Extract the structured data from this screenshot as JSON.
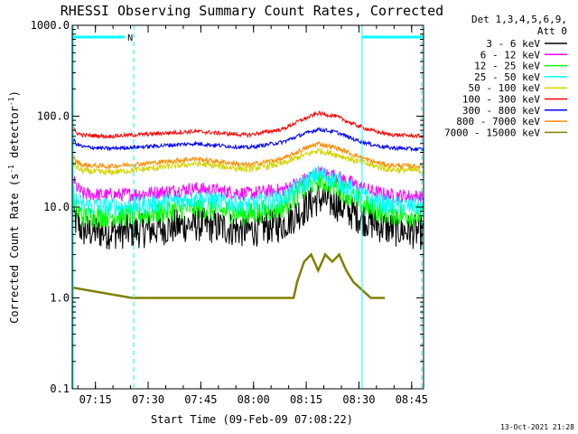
{
  "chart_data": {
    "type": "line",
    "title": "RHESSI Observing Summary Count Rates, Corrected",
    "xlabel": "Start Time (09-Feb-09 07:08:22)",
    "ylabel_main": "Corrected Count Rate (s",
    "ylabel_sup1": "-1",
    "ylabel_mid": " detector",
    "ylabel_sup2": "-1",
    "ylabel_end": ")",
    "y_scale": "log",
    "ylim": [
      0.1,
      1000.0
    ],
    "xlim_minutes": [
      0,
      100
    ],
    "x_ticks": [
      {
        "label": "07:15",
        "minute": 6.6
      },
      {
        "label": "07:30",
        "minute": 21.6
      },
      {
        "label": "07:45",
        "minute": 36.6
      },
      {
        "label": "08:00",
        "minute": 51.6
      },
      {
        "label": "08:15",
        "minute": 66.6
      },
      {
        "label": "08:30",
        "minute": 81.6
      },
      {
        "label": "08:45",
        "minute": 96.6
      }
    ],
    "y_ticks": [
      {
        "label": "1000.0",
        "value": 1000
      },
      {
        "label": "100.0",
        "value": 100
      },
      {
        "label": "10.0",
        "value": 10
      },
      {
        "label": "1.0",
        "value": 1
      },
      {
        "label": "0.1",
        "value": 0.1
      }
    ],
    "legend_title_1": "Det 1,3,4,5,6,9,",
    "legend_title_2": "Att 0",
    "legend_placement": "right",
    "series": [
      {
        "name": "3 - 6 keV",
        "color": "#000000",
        "minutes": [
          0,
          1,
          3,
          10,
          20,
          35,
          50,
          60,
          65,
          70,
          75,
          80,
          85,
          90,
          100
        ],
        "values": [
          9,
          7,
          5.5,
          5.3,
          5.5,
          6.5,
          5.5,
          6.5,
          9,
          12.5,
          11,
          8.5,
          6.8,
          5.8,
          5.2
        ],
        "noise": 0.45
      },
      {
        "name": "6 - 12 keV",
        "color": "#ff00ff",
        "minutes": [
          0,
          1,
          3,
          10,
          20,
          35,
          50,
          60,
          65,
          70,
          75,
          80,
          85,
          90,
          100
        ],
        "values": [
          22,
          17,
          14,
          13.5,
          14,
          16,
          14,
          15.5,
          19,
          24,
          22,
          18,
          15,
          13.5,
          13
        ],
        "noise": 0.18
      },
      {
        "name": "12 - 25 keV",
        "color": "#00ff00",
        "minutes": [
          0,
          1,
          3,
          10,
          20,
          35,
          50,
          60,
          65,
          70,
          75,
          80,
          85,
          90,
          100
        ],
        "values": [
          12,
          9.5,
          8,
          8,
          8.3,
          10,
          8.3,
          10,
          15,
          20,
          17,
          12.5,
          9.5,
          8.5,
          8
        ],
        "noise": 0.3
      },
      {
        "name": "25 - 50 keV",
        "color": "#00ffff",
        "minutes": [
          0,
          1,
          3,
          10,
          20,
          35,
          50,
          60,
          65,
          70,
          75,
          80,
          85,
          90,
          100
        ],
        "values": [
          15,
          12,
          10.5,
          10,
          10.5,
          12.5,
          10.5,
          12.5,
          17,
          23,
          20,
          15,
          12,
          10.5,
          10
        ],
        "noise": 0.25
      },
      {
        "name": "50 - 100 keV",
        "color": "#d4d400",
        "minutes": [
          0,
          1,
          3,
          10,
          20,
          35,
          50,
          60,
          65,
          70,
          75,
          80,
          85,
          90,
          100
        ],
        "values": [
          34,
          28,
          25,
          24,
          26,
          30,
          26,
          30,
          36,
          42,
          38,
          33,
          29,
          26,
          25
        ],
        "noise": 0.08
      },
      {
        "name": "100 - 300 keV",
        "color": "#ff0000",
        "minutes": [
          0,
          1,
          3,
          10,
          20,
          35,
          50,
          60,
          65,
          70,
          75,
          80,
          85,
          90,
          100
        ],
        "values": [
          80,
          66,
          62,
          60,
          63,
          68,
          62,
          72,
          90,
          108,
          100,
          82,
          70,
          63,
          60
        ],
        "noise": 0.05
      },
      {
        "name": "300 - 800 keV",
        "color": "#0000ff",
        "minutes": [
          0,
          1,
          3,
          10,
          20,
          35,
          50,
          60,
          65,
          70,
          75,
          80,
          85,
          90,
          100
        ],
        "values": [
          60,
          50,
          46,
          44,
          46,
          50,
          45,
          52,
          62,
          72,
          67,
          56,
          49,
          45,
          43
        ],
        "noise": 0.05
      },
      {
        "name": "800 - 7000 keV",
        "color": "#ff8c00",
        "minutes": [
          0,
          1,
          3,
          10,
          20,
          35,
          50,
          60,
          65,
          70,
          75,
          80,
          85,
          90,
          100
        ],
        "values": [
          40,
          32,
          29,
          28,
          30,
          34,
          29,
          34,
          42,
          50,
          45,
          38,
          32,
          29,
          28
        ],
        "noise": 0.06
      },
      {
        "name": "7000 - 15000 keV",
        "color": "#808000",
        "minutes": [
          0,
          17,
          17.5,
          40,
          55,
          63,
          64,
          66,
          68,
          70,
          72,
          74,
          76,
          78,
          80,
          85,
          89
        ],
        "values": [
          1.3,
          1.0,
          1.0,
          1.0,
          1.0,
          1.0,
          1.5,
          2.5,
          3,
          2,
          3,
          2.5,
          3,
          2,
          1.5,
          1.0,
          1.0
        ],
        "noise": 0.0
      }
    ],
    "annotations": [
      {
        "kind": "attenuator-bar",
        "label": "N",
        "from_minute": 0,
        "to_minute": 17.5
      },
      {
        "kind": "attenuator-bar",
        "label": "",
        "from_minute": 82.5,
        "to_minute": 100
      },
      {
        "kind": "vline-dashed",
        "minute": 17.5
      },
      {
        "kind": "vline-solid",
        "minute": 82.5
      },
      {
        "kind": "vline-dashed",
        "minute": 99.5
      }
    ],
    "grid": false
  },
  "footer": {
    "timestamp": "13-Oct-2021 21:28"
  },
  "colors": {
    "background": "#ffffff",
    "axes": "#000000",
    "markers": "#00ffff"
  }
}
